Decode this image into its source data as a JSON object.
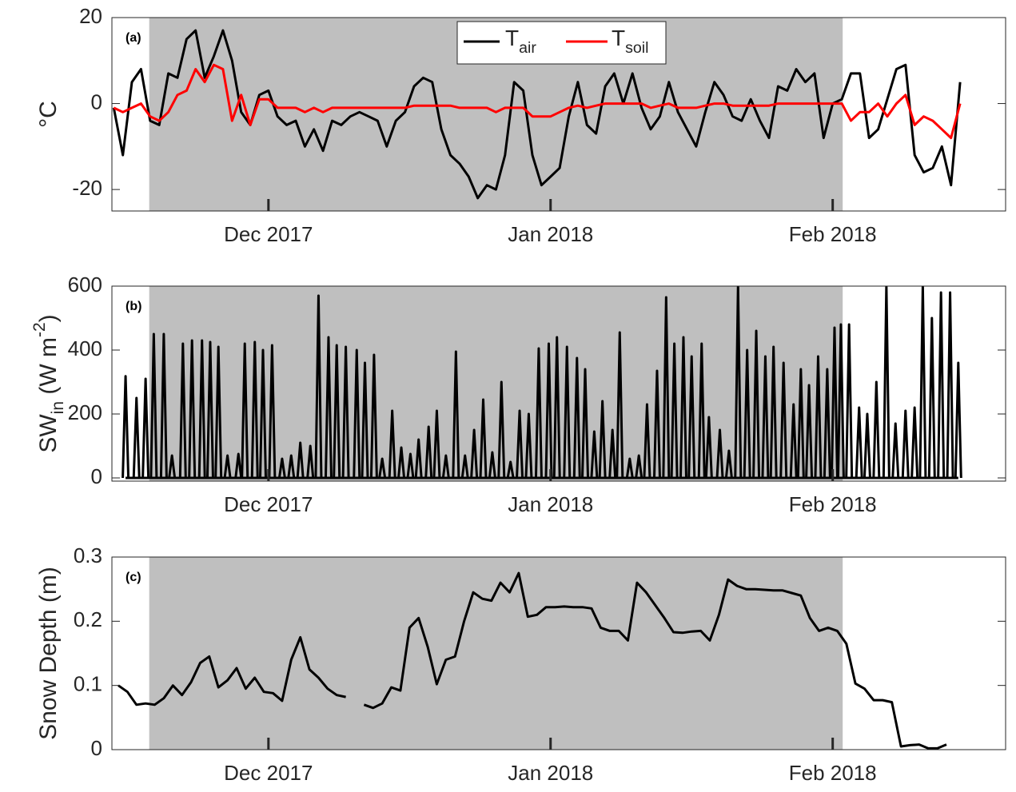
{
  "chart_data": [
    {
      "type": "line",
      "annotation": "(a)",
      "ylabel": "°C",
      "xlim": [
        -17.2,
        81
      ],
      "ylim": [
        -25,
        20
      ],
      "yticks": [
        -20,
        0,
        20
      ],
      "xticks": [
        {
          "value": 0,
          "label": "Dec 2017"
        },
        {
          "value": 31,
          "label": "Jan 2018"
        },
        {
          "value": 62,
          "label": "Feb 2018"
        }
      ],
      "shaded_region": [
        -13.1,
        63.1
      ],
      "shade_color": "#bfbfbf",
      "legend": "top",
      "x": [
        -17,
        -16,
        -15,
        -14,
        -13,
        -12,
        -11,
        -10,
        -9,
        -8,
        -7,
        -6,
        -5,
        -4,
        -3,
        -2,
        -1,
        0,
        1,
        2,
        3,
        4,
        5,
        6,
        7,
        8,
        9,
        10,
        11,
        12,
        13,
        14,
        15,
        16,
        17,
        18,
        19,
        20,
        21,
        22,
        23,
        24,
        25,
        26,
        27,
        28,
        29,
        30,
        31,
        32,
        33,
        34,
        35,
        36,
        37,
        38,
        39,
        40,
        41,
        42,
        43,
        44,
        45,
        46,
        47,
        48,
        49,
        50,
        51,
        52,
        53,
        54,
        55,
        56,
        57,
        58,
        59,
        60,
        61,
        62,
        63,
        64,
        65,
        66,
        67,
        68,
        69,
        70,
        71,
        72,
        73,
        74,
        75,
        76
      ],
      "series": [
        {
          "name": "Tair",
          "color": "#000000",
          "values": [
            -1,
            -12,
            5,
            8,
            -4,
            -5,
            7,
            6,
            15,
            17,
            6,
            11,
            17,
            10,
            -2,
            -5,
            2,
            3,
            -3,
            -5,
            -4,
            -10,
            -6,
            -11,
            -4,
            -5,
            -3,
            -2,
            -3,
            -4,
            -10,
            -4,
            -2,
            4,
            6,
            5,
            -6,
            -12,
            -14,
            -17,
            -22,
            -19,
            -20,
            -12,
            5,
            3,
            -12,
            -19,
            -17,
            -15,
            -3,
            5,
            -5,
            -7,
            4,
            7,
            0,
            7,
            -1,
            -6,
            -3,
            5,
            -2,
            -6,
            -10,
            -2,
            5,
            2,
            -3,
            -4,
            1,
            -4,
            -8,
            4,
            3,
            8,
            5,
            7,
            -8,
            0,
            1,
            7,
            7,
            -8,
            -6,
            1,
            8,
            9,
            -12,
            -16,
            -15,
            -10,
            -19,
            5
          ]
        },
        {
          "name": "Tsoil",
          "color": "#ff0000",
          "values": [
            -1,
            -2,
            -1,
            0,
            -3,
            -4,
            -2,
            2,
            3,
            8,
            5,
            9,
            8,
            -4,
            2,
            -5,
            1,
            1,
            -1,
            -1,
            -1,
            -2,
            -1,
            -2,
            -1,
            -1,
            -1,
            -1,
            -1,
            -1,
            -1,
            -1,
            -1,
            -0.5,
            -0.5,
            -0.5,
            -0.5,
            -0.5,
            -1,
            -1,
            -1,
            -1,
            -2,
            -1,
            -1,
            -1,
            -3,
            -3,
            -3,
            -2,
            -1,
            -0.5,
            -1,
            -0.5,
            0,
            0,
            0,
            0,
            0,
            -1,
            -0.5,
            0,
            -1,
            -1,
            -1,
            -0.5,
            0,
            0,
            -0.5,
            -0.5,
            -0.5,
            -0.5,
            -0.5,
            0,
            0,
            0,
            0,
            0,
            0,
            0,
            0,
            -4,
            -2,
            -2,
            0,
            -3,
            0,
            2,
            -5,
            -3,
            -4,
            -6,
            -8,
            0
          ]
        }
      ]
    },
    {
      "type": "spike",
      "annotation": "(b)",
      "ylabel": "SWin (W m-2)",
      "xlim": [
        -17.2,
        81
      ],
      "ylim": [
        -10,
        600
      ],
      "yticks": [
        0,
        200,
        400,
        600
      ],
      "xticks": [
        {
          "value": 0,
          "label": "Dec 2017"
        },
        {
          "value": 31,
          "label": "Jan 2018"
        },
        {
          "value": 62,
          "label": "Feb 2018"
        }
      ],
      "shaded_region": [
        -13.1,
        63.1
      ],
      "shade_color": "#bfbfbf",
      "x": [
        -15.7,
        -14.5,
        -13.5,
        -12.6,
        -11.5,
        -10.6,
        -9.4,
        -8.4,
        -7.3,
        -6.4,
        -5.5,
        -4.5,
        -3.3,
        -2.6,
        -1.5,
        -0.6,
        0.4,
        1.5,
        2.5,
        3.5,
        4.6,
        5.5,
        6.6,
        7.5,
        8.5,
        9.7,
        10.6,
        11.6,
        12.5,
        13.6,
        14.6,
        15.6,
        16.5,
        17.6,
        18.5,
        19.5,
        20.6,
        21.6,
        22.6,
        23.6,
        24.6,
        25.6,
        26.6,
        27.6,
        28.6,
        29.7,
        30.8,
        31.7,
        32.8,
        33.9,
        34.8,
        35.8,
        36.7,
        37.8,
        38.6,
        39.7,
        40.7,
        41.6,
        42.7,
        43.7,
        44.6,
        45.6,
        46.5,
        47.6,
        48.4,
        49.6,
        50.6,
        51.6,
        52.6,
        53.6,
        54.6,
        55.5,
        56.6,
        57.7,
        58.5,
        59.4,
        60.4,
        61.4,
        62.2,
        62.9,
        63.8,
        64.9,
        65.8,
        66.8,
        67.9,
        68.9,
        70.0,
        71.0,
        71.9,
        72.9,
        73.9,
        74.9,
        75.8
      ],
      "series": [
        {
          "name": "SWin",
          "color": "#000000",
          "values": [
            318,
            250,
            310,
            450,
            450,
            70,
            420,
            430,
            430,
            425,
            410,
            70,
            75,
            420,
            425,
            400,
            415,
            60,
            70,
            110,
            100,
            570,
            440,
            415,
            410,
            400,
            360,
            385,
            60,
            210,
            95,
            75,
            120,
            160,
            210,
            70,
            395,
            70,
            150,
            245,
            80,
            300,
            50,
            210,
            200,
            405,
            420,
            440,
            410,
            375,
            340,
            145,
            240,
            150,
            455,
            60,
            70,
            230,
            335,
            565,
            420,
            440,
            380,
            420,
            190,
            150,
            85,
            600,
            400,
            460,
            380,
            410,
            360,
            230,
            340,
            290,
            380,
            340,
            470,
            480,
            480,
            220,
            200,
            300,
            600,
            170,
            210,
            220,
            600,
            500,
            580,
            580,
            360
          ]
        }
      ]
    },
    {
      "type": "line",
      "annotation": "(c)",
      "ylabel": "Snow Depth (m)",
      "xlim": [
        -17.2,
        81
      ],
      "ylim": [
        0,
        0.3
      ],
      "yticks": [
        0,
        0.1,
        0.2,
        0.3
      ],
      "xticks": [
        {
          "value": 0,
          "label": "Dec 2017"
        },
        {
          "value": 31,
          "label": "Jan 2018"
        },
        {
          "value": 62,
          "label": "Feb 2018"
        }
      ],
      "shaded_region": [
        -13.1,
        63.1
      ],
      "shade_color": "#bfbfbf",
      "x": [
        -16.5,
        -15.5,
        -14.5,
        -13.5,
        -12.5,
        -11.5,
        -10.5,
        -9.5,
        -8.5,
        -7.5,
        -6.5,
        -5.5,
        -4.5,
        -3.5,
        -2.5,
        -1.5,
        -0.5,
        0.5,
        1.5,
        2.5,
        3.5,
        4.5,
        5.5,
        6.5,
        7.5,
        8.5,
        9.5,
        10.5,
        11.5,
        12.5,
        13.5,
        14.5,
        15.5,
        16.5,
        17.5,
        18.5,
        19.5,
        20.5,
        21.5,
        22.5,
        23.5,
        24.5,
        25.5,
        26.5,
        27.5,
        28.5,
        29.5,
        30.5,
        31.5,
        32.5,
        33.5,
        34.5,
        35.5,
        36.5,
        37.5,
        38.5,
        39.5,
        40.5,
        41.5,
        42.5,
        43.5,
        44.5,
        45.5,
        46.5,
        47.5,
        48.5,
        49.5,
        50.5,
        51.5,
        52.5,
        53.5,
        54.5,
        55.5,
        56.5,
        57.5,
        58.5,
        59.5,
        60.5,
        61.5,
        62.5,
        63.5,
        64.5,
        65.5,
        66.5,
        67.5,
        68.5,
        69.5,
        70.5,
        71.5,
        72.5,
        73.5,
        74.5
      ],
      "series": [
        {
          "name": "Snow Depth",
          "color": "#000000",
          "values": [
            0.1,
            0.09,
            0.07,
            0.072,
            0.07,
            0.08,
            0.1,
            0.085,
            0.105,
            0.135,
            0.145,
            0.097,
            0.108,
            0.127,
            0.095,
            0.112,
            0.09,
            0.088,
            0.076,
            0.14,
            0.175,
            0.125,
            0.112,
            0.095,
            0.085,
            0.082,
            null,
            0.07,
            0.065,
            0.072,
            0.097,
            0.092,
            0.19,
            0.205,
            0.16,
            0.102,
            0.14,
            0.145,
            0.2,
            0.245,
            0.235,
            0.232,
            0.26,
            0.245,
            0.275,
            0.207,
            0.21,
            0.222,
            0.222,
            0.223,
            0.222,
            0.222,
            0.22,
            0.19,
            0.185,
            0.185,
            0.17,
            0.26,
            0.245,
            0.225,
            0.205,
            0.183,
            0.182,
            0.184,
            0.185,
            0.17,
            0.21,
            0.265,
            0.255,
            0.25,
            0.25,
            0.249,
            0.248,
            0.248,
            0.244,
            0.24,
            0.205,
            0.185,
            0.19,
            0.185,
            0.165,
            0.103,
            0.095,
            0.077,
            0.077,
            0.074,
            0.005,
            0.007,
            0.008,
            0.002,
            0.002,
            0.008
          ]
        }
      ]
    }
  ]
}
